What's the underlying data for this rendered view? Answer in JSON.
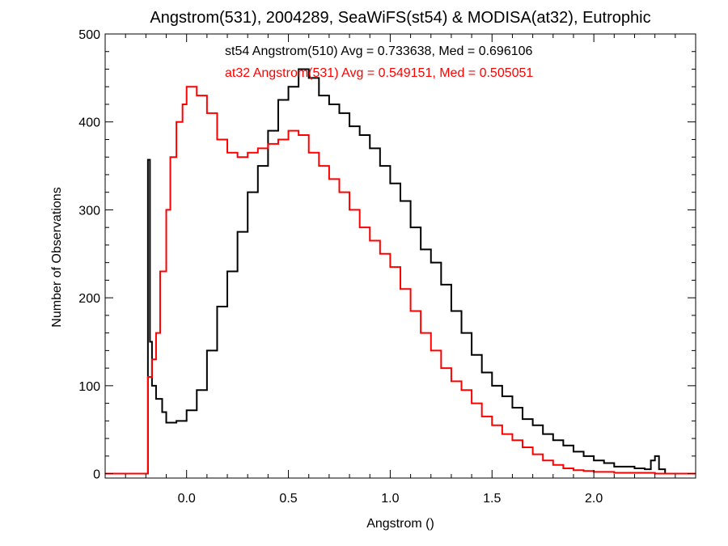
{
  "chart_data": {
    "type": "line",
    "title": "Angstrom(531), 2004289, SeaWiFS(st54) & MODISA(at32), Eutrophic",
    "xlabel": "Angstrom ()",
    "ylabel": "Number of Observations",
    "xlim": [
      -0.4,
      2.5
    ],
    "ylim": [
      -5,
      500
    ],
    "x_ticks": [
      0.0,
      0.5,
      1.0,
      1.5,
      2.0
    ],
    "x_tick_labels": [
      "0.0",
      "0.5",
      "1.0",
      "1.5",
      "2.0"
    ],
    "y_ticks": [
      0,
      100,
      200,
      300,
      400,
      500
    ],
    "y_tick_labels": [
      "0",
      "100",
      "200",
      "300",
      "400",
      "500"
    ],
    "grid": false,
    "legend_position": "top-center",
    "series": [
      {
        "name": "st54 Angstrom(510) Avg = 0.733638, Med = 0.696106",
        "color": "#000000",
        "x": [
          -0.4,
          -0.2,
          -0.19,
          -0.18,
          -0.17,
          -0.15,
          -0.12,
          -0.1,
          -0.05,
          0.0,
          0.05,
          0.1,
          0.15,
          0.2,
          0.25,
          0.3,
          0.35,
          0.4,
          0.45,
          0.5,
          0.55,
          0.6,
          0.65,
          0.7,
          0.75,
          0.8,
          0.85,
          0.9,
          0.95,
          1.0,
          1.05,
          1.1,
          1.15,
          1.2,
          1.25,
          1.3,
          1.35,
          1.4,
          1.45,
          1.5,
          1.55,
          1.6,
          1.65,
          1.7,
          1.75,
          1.8,
          1.85,
          1.9,
          1.95,
          2.0,
          2.05,
          2.1,
          2.15,
          2.2,
          2.25,
          2.28,
          2.3,
          2.32,
          2.35,
          2.5
        ],
        "y": [
          0,
          0,
          357,
          150,
          100,
          85,
          70,
          58,
          60,
          72,
          95,
          140,
          190,
          230,
          275,
          320,
          350,
          390,
          425,
          440,
          460,
          450,
          430,
          420,
          410,
          395,
          385,
          370,
          350,
          330,
          310,
          280,
          255,
          240,
          215,
          185,
          160,
          135,
          115,
          100,
          88,
          75,
          62,
          55,
          45,
          38,
          32,
          25,
          20,
          15,
          12,
          8,
          8,
          6,
          5,
          15,
          20,
          5,
          0,
          0
        ]
      },
      {
        "name": "at32 Angstrom(531) Avg = 0.549151, Med = 0.505051",
        "color": "#ff0000",
        "x": [
          -0.4,
          -0.2,
          -0.19,
          -0.17,
          -0.15,
          -0.13,
          -0.1,
          -0.08,
          -0.05,
          -0.02,
          0.0,
          0.05,
          0.1,
          0.15,
          0.2,
          0.25,
          0.3,
          0.35,
          0.4,
          0.45,
          0.5,
          0.55,
          0.6,
          0.65,
          0.7,
          0.75,
          0.8,
          0.85,
          0.9,
          0.95,
          1.0,
          1.05,
          1.1,
          1.15,
          1.2,
          1.25,
          1.3,
          1.35,
          1.4,
          1.45,
          1.5,
          1.55,
          1.6,
          1.65,
          1.7,
          1.75,
          1.8,
          1.85,
          1.9,
          1.95,
          2.0,
          2.1,
          2.2,
          2.3,
          2.35,
          2.5
        ],
        "y": [
          0,
          0,
          110,
          130,
          160,
          230,
          300,
          360,
          400,
          420,
          440,
          430,
          410,
          380,
          365,
          360,
          365,
          370,
          375,
          380,
          390,
          385,
          365,
          350,
          335,
          320,
          300,
          280,
          265,
          250,
          235,
          210,
          185,
          160,
          140,
          120,
          105,
          95,
          80,
          65,
          55,
          45,
          38,
          30,
          22,
          15,
          10,
          6,
          4,
          3,
          2,
          1,
          1,
          0,
          0,
          0
        ]
      }
    ]
  }
}
